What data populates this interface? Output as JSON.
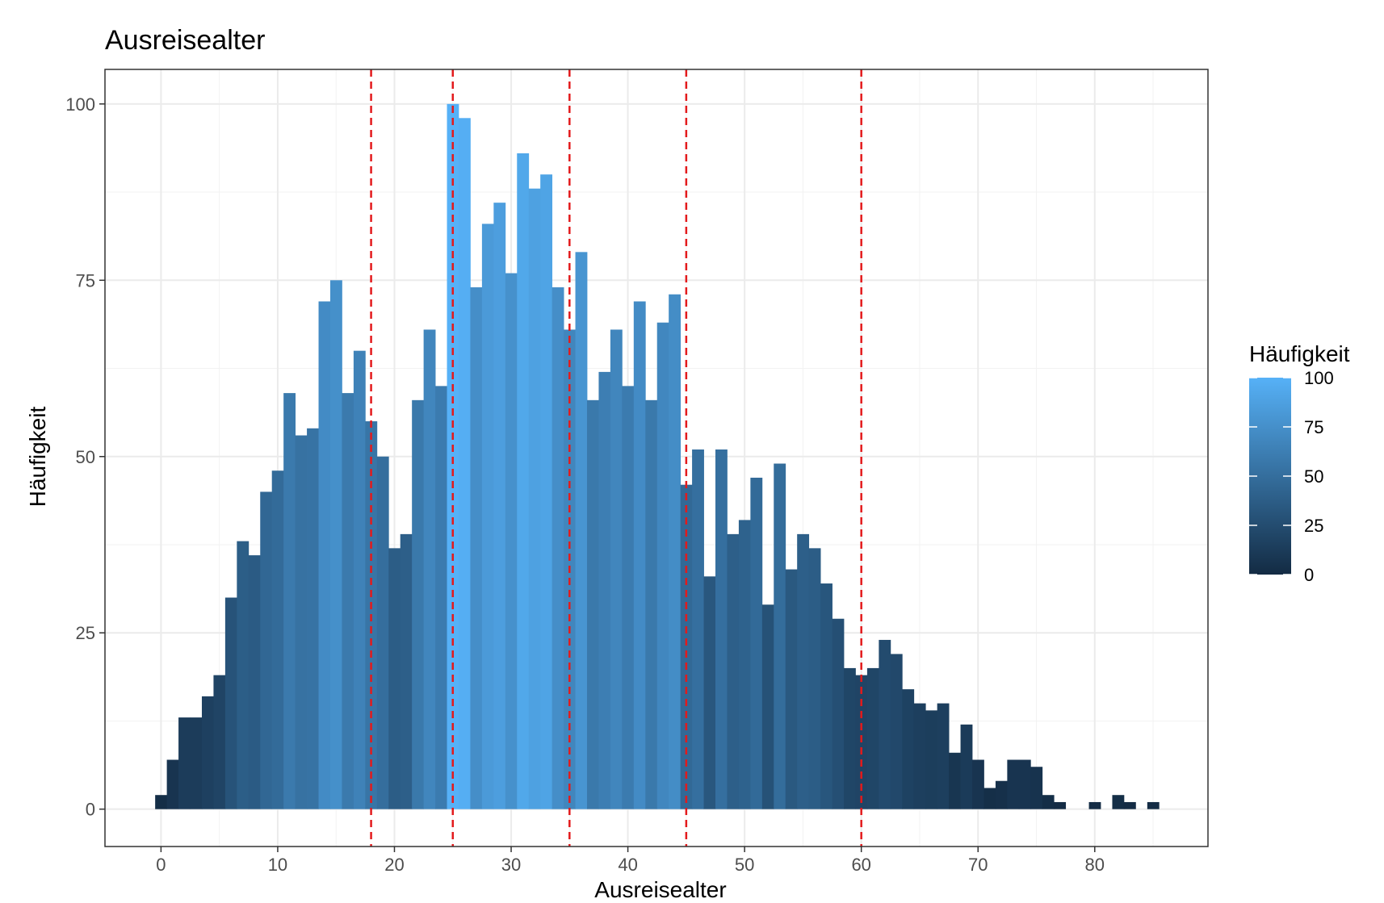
{
  "chart_data": {
    "type": "bar",
    "title": "Ausreisealter",
    "xlabel": "Ausreisealter",
    "ylabel": "Häufigkeit",
    "xlim": [
      -4.8,
      89.7
    ],
    "ylim": [
      -5.3,
      104.9
    ],
    "x_ticks": [
      0,
      10,
      20,
      30,
      40,
      50,
      60,
      70,
      80
    ],
    "y_ticks": [
      0,
      25,
      50,
      75,
      100
    ],
    "x": [
      0,
      1,
      2,
      3,
      4,
      5,
      6,
      7,
      8,
      9,
      10,
      11,
      12,
      13,
      14,
      15,
      16,
      17,
      18,
      19,
      20,
      21,
      22,
      23,
      24,
      25,
      26,
      27,
      28,
      29,
      30,
      31,
      32,
      33,
      34,
      35,
      36,
      37,
      38,
      39,
      40,
      41,
      42,
      43,
      44,
      45,
      46,
      47,
      48,
      49,
      50,
      51,
      52,
      53,
      54,
      55,
      56,
      57,
      58,
      59,
      60,
      61,
      62,
      63,
      64,
      65,
      66,
      67,
      68,
      69,
      70,
      71,
      72,
      73,
      74,
      75,
      76,
      77,
      80,
      82,
      83,
      85
    ],
    "values": [
      2,
      7,
      13,
      13,
      16,
      19,
      30,
      38,
      36,
      45,
      48,
      59,
      53,
      54,
      72,
      75,
      59,
      65,
      55,
      50,
      37,
      39,
      58,
      68,
      60,
      100,
      98,
      74,
      83,
      86,
      76,
      93,
      88,
      90,
      74,
      68,
      79,
      58,
      62,
      68,
      60,
      72,
      58,
      69,
      73,
      46,
      51,
      33,
      51,
      39,
      41,
      47,
      29,
      49,
      34,
      39,
      37,
      32,
      27,
      20,
      19,
      20,
      24,
      22,
      17,
      15,
      14,
      15,
      8,
      12,
      7,
      3,
      4,
      7,
      7,
      6,
      2,
      1,
      1,
      2,
      1,
      1
    ],
    "vlines": [
      18,
      25,
      35,
      45,
      60
    ],
    "vline_color": "#e31a1c",
    "fill_low": "#132B43",
    "fill_high": "#56B1F7",
    "grid": true,
    "legend": {
      "title": "Häufigkeit",
      "labels": [
        "100",
        "75",
        "50",
        "25",
        "0"
      ],
      "values": [
        100,
        75,
        50,
        25,
        0
      ],
      "placement": "right"
    }
  }
}
